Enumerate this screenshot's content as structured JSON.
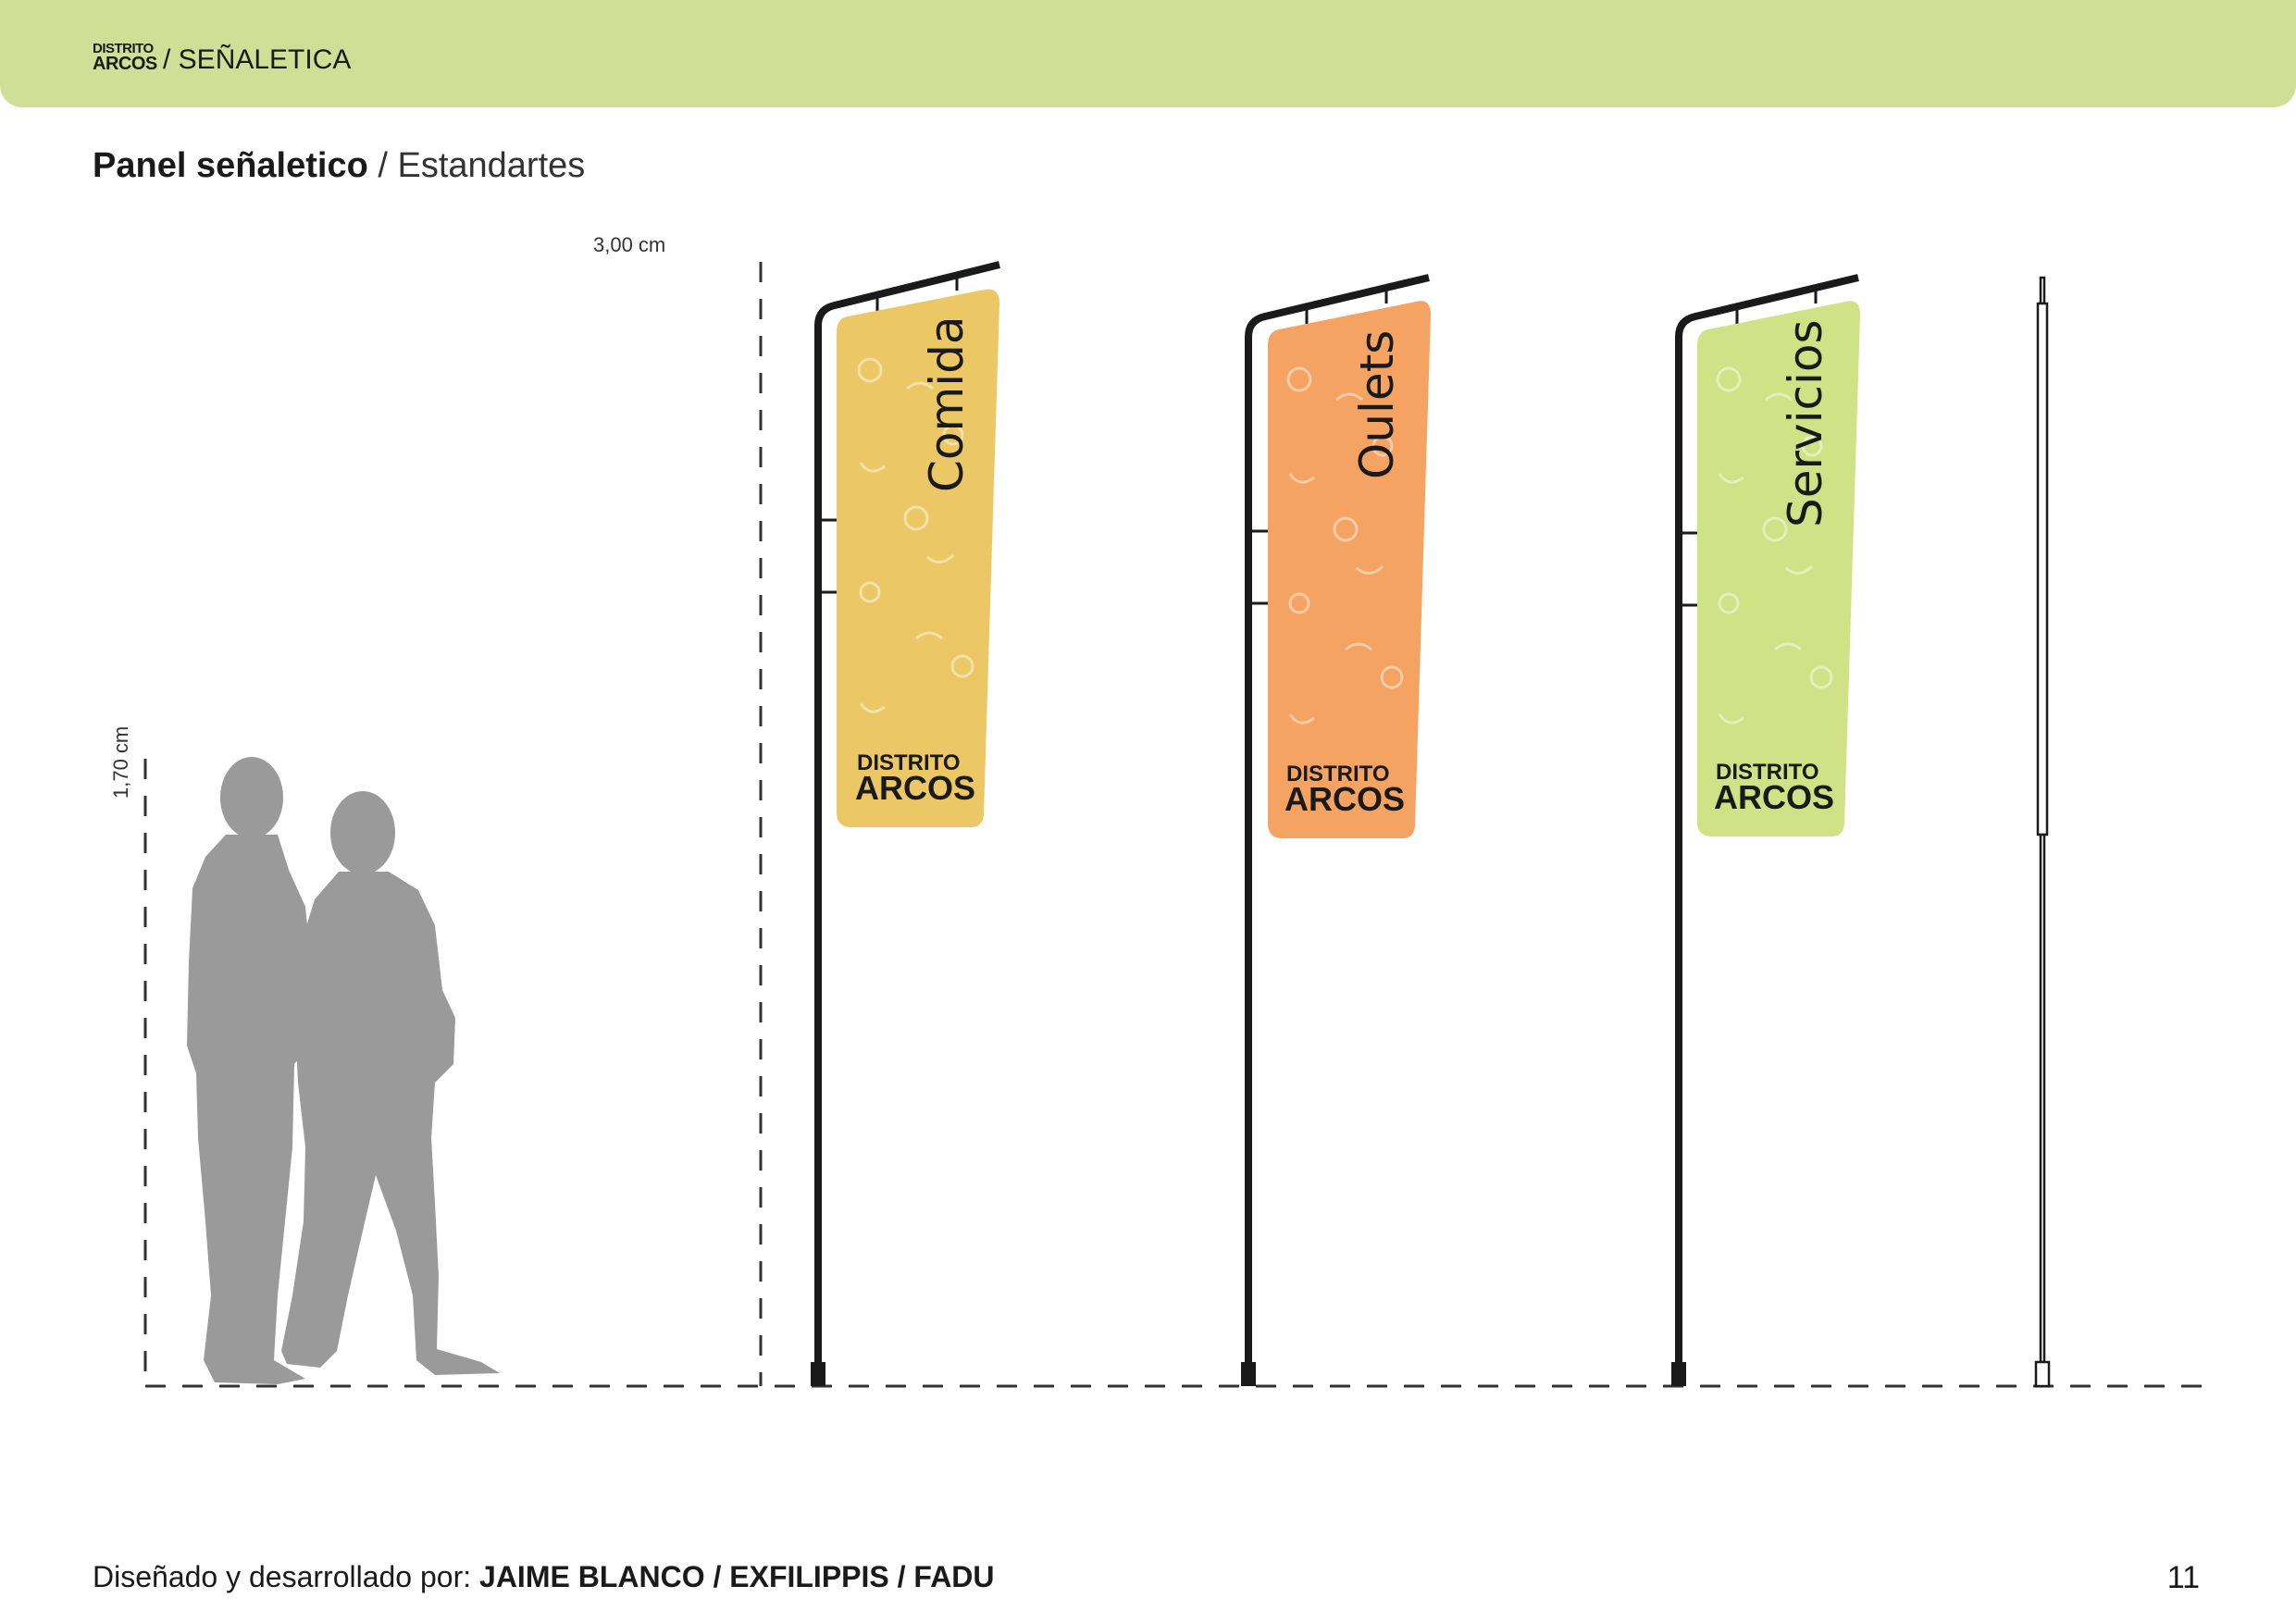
{
  "header": {
    "logo_line1": "DISTRITO",
    "logo_line2": "ARCOS",
    "section": "/ SEÑALETICA",
    "background": "#cfe096"
  },
  "title": {
    "bold": "Panel señaletico",
    "rest": " / Estandartes"
  },
  "dimensions": {
    "top": "3,00 cm",
    "left": "1,70 cm"
  },
  "flags": [
    {
      "label": "Comida",
      "color": "#ecc765",
      "logo_line1": "DISTRITO",
      "logo_line2": "ARCOS"
    },
    {
      "label": "Oulets",
      "color": "#f5a362",
      "logo_line1": "DISTRITO",
      "logo_line2": "ARCOS"
    },
    {
      "label": "Servicios",
      "color": "#d0e285",
      "logo_line1": "DISTRITO",
      "logo_line2": "ARCOS"
    }
  ],
  "footer": {
    "prefix": "Diseñado y desarrollado por: ",
    "credits": "JAIME BLANCO / EXFILIPPIS / FADU",
    "page_number": "11"
  }
}
